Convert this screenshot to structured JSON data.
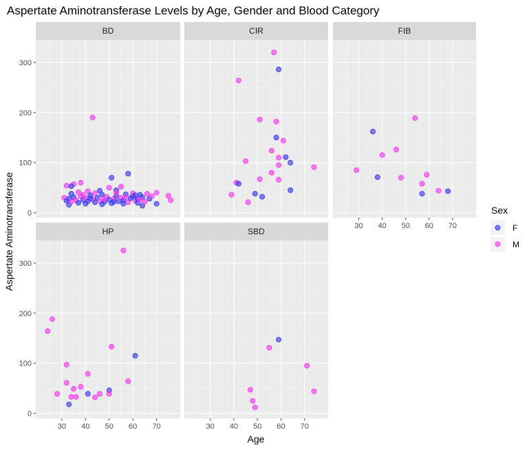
{
  "title": "Aspertate Aminotransferase Levels by Age, Gender and Blood Category",
  "chart_data": {
    "type": "scatter",
    "title": "Aspertate Aminotransferase Levels by Age, Gender and Blood Category",
    "xlabel": "Age",
    "ylabel": "Aspertate Aminotransferase",
    "xlim": [
      19,
      80
    ],
    "ylim": [
      -10,
      345
    ],
    "x_ticks": [
      30,
      40,
      50,
      60,
      70
    ],
    "y_ticks": [
      0,
      100,
      200,
      300
    ],
    "grid": true,
    "legend": {
      "title": "Sex",
      "position": "right",
      "entries": [
        {
          "label": "F",
          "color": "#3b3bf5"
        },
        {
          "label": "M",
          "color": "#f53bf5"
        }
      ]
    },
    "facets": [
      {
        "name": "BD",
        "points": [
          {
            "sex": "M",
            "x": 43,
            "y": 190
          },
          {
            "sex": "F",
            "x": 58,
            "y": 78
          },
          {
            "sex": "F",
            "x": 51,
            "y": 70
          },
          {
            "sex": "M",
            "x": 38,
            "y": 60
          },
          {
            "sex": "M",
            "x": 35,
            "y": 57
          },
          {
            "sex": "M",
            "x": 32,
            "y": 54
          },
          {
            "sex": "F",
            "x": 34,
            "y": 53
          },
          {
            "sex": "M",
            "x": 55,
            "y": 52
          },
          {
            "sex": "M",
            "x": 50,
            "y": 50
          },
          {
            "sex": "F",
            "x": 53,
            "y": 45
          },
          {
            "sex": "F",
            "x": 46,
            "y": 44
          },
          {
            "sex": "M",
            "x": 41,
            "y": 43
          },
          {
            "sex": "M",
            "x": 70,
            "y": 40
          },
          {
            "sex": "M",
            "x": 75,
            "y": 34
          },
          {
            "sex": "M",
            "x": 76,
            "y": 25
          },
          {
            "sex": "F",
            "x": 70,
            "y": 18
          },
          {
            "sex": "F",
            "x": 64,
            "y": 14
          },
          {
            "sex": "F",
            "x": 33,
            "y": 16
          },
          {
            "sex": "M",
            "x": 66,
            "y": 38
          },
          {
            "sex": "F",
            "x": 63,
            "y": 36
          },
          {
            "sex": "F",
            "x": 33,
            "y": 28
          },
          {
            "sex": "M",
            "x": 34,
            "y": 22
          },
          {
            "sex": "F",
            "x": 35,
            "y": 31
          },
          {
            "sex": "M",
            "x": 36,
            "y": 25
          },
          {
            "sex": "F",
            "x": 37,
            "y": 20
          },
          {
            "sex": "M",
            "x": 38,
            "y": 33
          },
          {
            "sex": "F",
            "x": 39,
            "y": 26
          },
          {
            "sex": "M",
            "x": 40,
            "y": 29
          },
          {
            "sex": "F",
            "x": 41,
            "y": 23
          },
          {
            "sex": "F",
            "x": 42,
            "y": 35
          },
          {
            "sex": "M",
            "x": 43,
            "y": 27
          },
          {
            "sex": "F",
            "x": 44,
            "y": 21
          },
          {
            "sex": "F",
            "x": 45,
            "y": 30
          },
          {
            "sex": "M",
            "x": 46,
            "y": 24
          },
          {
            "sex": "F",
            "x": 47,
            "y": 36
          },
          {
            "sex": "F",
            "x": 48,
            "y": 22
          },
          {
            "sex": "M",
            "x": 49,
            "y": 32
          },
          {
            "sex": "F",
            "x": 50,
            "y": 26
          },
          {
            "sex": "F",
            "x": 51,
            "y": 19
          },
          {
            "sex": "M",
            "x": 52,
            "y": 28
          },
          {
            "sex": "F",
            "x": 53,
            "y": 34
          },
          {
            "sex": "F",
            "x": 54,
            "y": 23
          },
          {
            "sex": "M",
            "x": 55,
            "y": 30
          },
          {
            "sex": "F",
            "x": 56,
            "y": 25
          },
          {
            "sex": "F",
            "x": 57,
            "y": 37
          },
          {
            "sex": "M",
            "x": 58,
            "y": 21
          },
          {
            "sex": "F",
            "x": 59,
            "y": 29
          },
          {
            "sex": "F",
            "x": 60,
            "y": 33
          },
          {
            "sex": "M",
            "x": 61,
            "y": 24
          },
          {
            "sex": "F",
            "x": 62,
            "y": 27
          },
          {
            "sex": "F",
            "x": 64,
            "y": 31
          },
          {
            "sex": "M",
            "x": 65,
            "y": 22
          },
          {
            "sex": "F",
            "x": 67,
            "y": 28
          },
          {
            "sex": "M",
            "x": 68,
            "y": 33
          },
          {
            "sex": "F",
            "x": 34,
            "y": 38
          },
          {
            "sex": "M",
            "x": 37,
            "y": 41
          },
          {
            "sex": "F",
            "x": 40,
            "y": 18
          },
          {
            "sex": "M",
            "x": 44,
            "y": 39
          },
          {
            "sex": "F",
            "x": 47,
            "y": 17
          },
          {
            "sex": "M",
            "x": 53,
            "y": 40
          },
          {
            "sex": "F",
            "x": 56,
            "y": 18
          },
          {
            "sex": "M",
            "x": 60,
            "y": 39
          },
          {
            "sex": "F",
            "x": 62,
            "y": 20
          },
          {
            "sex": "M",
            "x": 31,
            "y": 30
          },
          {
            "sex": "F",
            "x": 32,
            "y": 24
          },
          {
            "sex": "M",
            "x": 39,
            "y": 36
          },
          {
            "sex": "F",
            "x": 42,
            "y": 29
          },
          {
            "sex": "M",
            "x": 48,
            "y": 27
          },
          {
            "sex": "F",
            "x": 52,
            "y": 22
          },
          {
            "sex": "M",
            "x": 57,
            "y": 31
          },
          {
            "sex": "F",
            "x": 61,
            "y": 35
          },
          {
            "sex": "M",
            "x": 63,
            "y": 26
          }
        ]
      },
      {
        "name": "CIR",
        "points": [
          {
            "sex": "M",
            "x": 57,
            "y": 320
          },
          {
            "sex": "F",
            "x": 59,
            "y": 286
          },
          {
            "sex": "M",
            "x": 42,
            "y": 264
          },
          {
            "sex": "M",
            "x": 51,
            "y": 186
          },
          {
            "sex": "M",
            "x": 58,
            "y": 182
          },
          {
            "sex": "F",
            "x": 58,
            "y": 150
          },
          {
            "sex": "M",
            "x": 61,
            "y": 144
          },
          {
            "sex": "M",
            "x": 56,
            "y": 124
          },
          {
            "sex": "F",
            "x": 62,
            "y": 111
          },
          {
            "sex": "M",
            "x": 59,
            "y": 110
          },
          {
            "sex": "M",
            "x": 45,
            "y": 103
          },
          {
            "sex": "F",
            "x": 64,
            "y": 100
          },
          {
            "sex": "M",
            "x": 59,
            "y": 95
          },
          {
            "sex": "M",
            "x": 74,
            "y": 91
          },
          {
            "sex": "M",
            "x": 56,
            "y": 80
          },
          {
            "sex": "M",
            "x": 51,
            "y": 67
          },
          {
            "sex": "M",
            "x": 59,
            "y": 66
          },
          {
            "sex": "M",
            "x": 41,
            "y": 60
          },
          {
            "sex": "F",
            "x": 42,
            "y": 58
          },
          {
            "sex": "F",
            "x": 64,
            "y": 45
          },
          {
            "sex": "F",
            "x": 49,
            "y": 38
          },
          {
            "sex": "M",
            "x": 39,
            "y": 36
          },
          {
            "sex": "F",
            "x": 52,
            "y": 32
          },
          {
            "sex": "M",
            "x": 46,
            "y": 21
          }
        ]
      },
      {
        "name": "FIB",
        "points": [
          {
            "sex": "M",
            "x": 54,
            "y": 189
          },
          {
            "sex": "F",
            "x": 36,
            "y": 162
          },
          {
            "sex": "M",
            "x": 46,
            "y": 126
          },
          {
            "sex": "M",
            "x": 40,
            "y": 115
          },
          {
            "sex": "M",
            "x": 29,
            "y": 85
          },
          {
            "sex": "M",
            "x": 59,
            "y": 76
          },
          {
            "sex": "F",
            "x": 38,
            "y": 71
          },
          {
            "sex": "M",
            "x": 48,
            "y": 70
          },
          {
            "sex": "M",
            "x": 57,
            "y": 58
          },
          {
            "sex": "M",
            "x": 64,
            "y": 44
          },
          {
            "sex": "F",
            "x": 68,
            "y": 43
          },
          {
            "sex": "F",
            "x": 57,
            "y": 38
          }
        ]
      },
      {
        "name": "HP",
        "points": [
          {
            "sex": "M",
            "x": 56,
            "y": 325
          },
          {
            "sex": "M",
            "x": 26,
            "y": 188
          },
          {
            "sex": "M",
            "x": 24,
            "y": 164
          },
          {
            "sex": "M",
            "x": 51,
            "y": 133
          },
          {
            "sex": "F",
            "x": 61,
            "y": 115
          },
          {
            "sex": "M",
            "x": 32,
            "y": 97
          },
          {
            "sex": "M",
            "x": 41,
            "y": 79
          },
          {
            "sex": "M",
            "x": 58,
            "y": 64
          },
          {
            "sex": "M",
            "x": 32,
            "y": 61
          },
          {
            "sex": "M",
            "x": 38,
            "y": 53
          },
          {
            "sex": "M",
            "x": 35,
            "y": 49
          },
          {
            "sex": "F",
            "x": 50,
            "y": 46
          },
          {
            "sex": "M",
            "x": 28,
            "y": 39
          },
          {
            "sex": "M",
            "x": 46,
            "y": 39
          },
          {
            "sex": "F",
            "x": 41,
            "y": 39
          },
          {
            "sex": "M",
            "x": 50,
            "y": 39
          },
          {
            "sex": "M",
            "x": 34,
            "y": 33
          },
          {
            "sex": "M",
            "x": 36,
            "y": 33
          },
          {
            "sex": "M",
            "x": 44,
            "y": 32
          },
          {
            "sex": "F",
            "x": 33,
            "y": 18
          }
        ]
      },
      {
        "name": "SBD",
        "points": [
          {
            "sex": "F",
            "x": 59,
            "y": 147
          },
          {
            "sex": "M",
            "x": 55,
            "y": 131
          },
          {
            "sex": "M",
            "x": 71,
            "y": 95
          },
          {
            "sex": "M",
            "x": 47,
            "y": 47
          },
          {
            "sex": "M",
            "x": 74,
            "y": 44
          },
          {
            "sex": "M",
            "x": 48,
            "y": 25
          },
          {
            "sex": "M",
            "x": 49,
            "y": 12
          }
        ]
      }
    ]
  }
}
